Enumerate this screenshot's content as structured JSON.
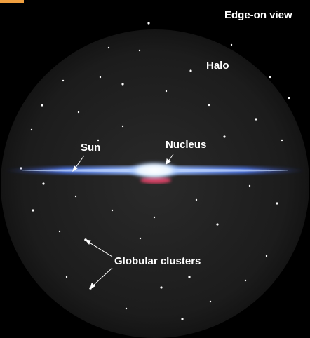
{
  "header": {
    "title": "Edge-on view"
  },
  "labels": {
    "halo": "Halo",
    "sun": "Sun",
    "nucleus": "Nucleus",
    "globular_clusters": "Globular clusters"
  }
}
